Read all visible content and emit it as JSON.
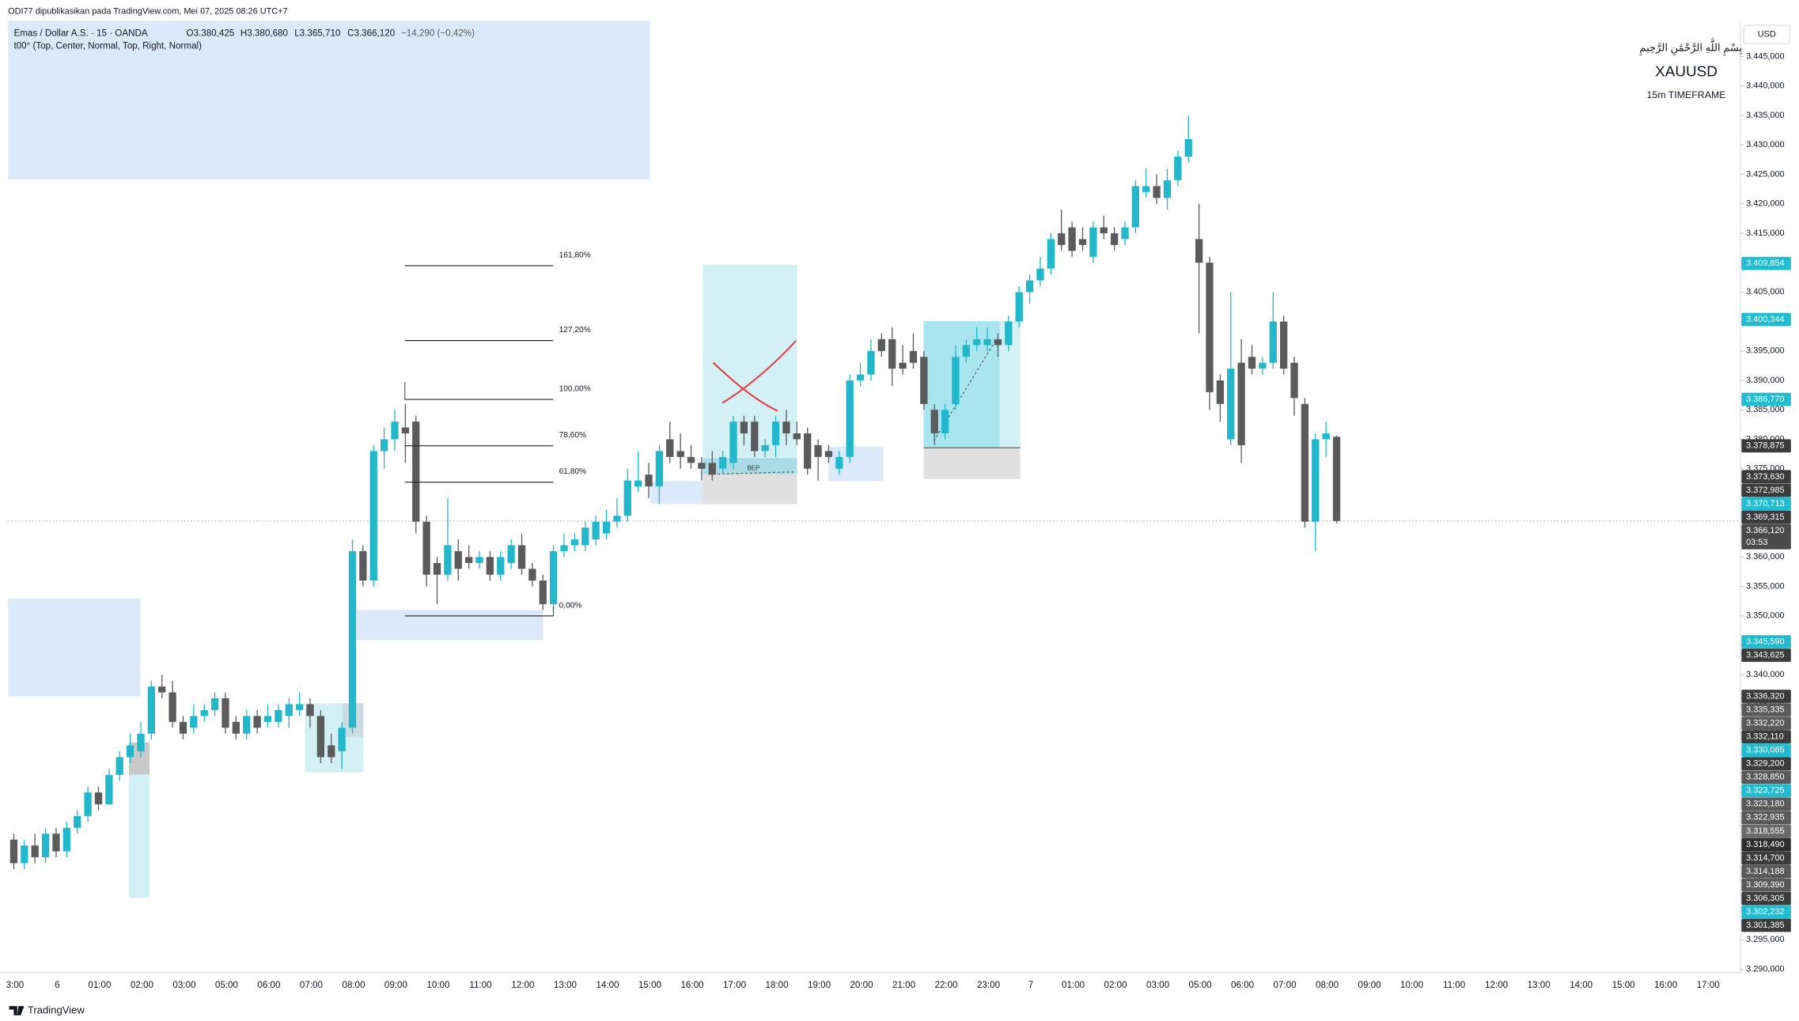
{
  "header": {
    "publisher": "ODI77 dipublikasikan pada TradingView.com, Mei 07, 2025 08:26 UTC+7"
  },
  "chart_data": {
    "type": "candlestick",
    "symbol_legend": "Emas / Dollar A.S. · 15 · OANDA",
    "ohlc_legend": [
      "O3.380,425",
      "H3.380,680",
      "L3.365,710",
      "C3.366,120",
      "−14,290 (−0,42%)"
    ],
    "indicator_legend": "t00° (Top, Center, Normal, Top, Right, Normal)",
    "currency": "USD",
    "annotations": {
      "basmala": "بِسْمِ اللَّهِ الرَّحْمَٰنِ الرَّحِيمِ",
      "symbol": "XAUUSD",
      "timeframe": "15m TIMEFRAME",
      "bep": "BEP"
    },
    "time_labels": [
      "3:00",
      "6",
      "01:00",
      "02:00",
      "03:00",
      "05:00",
      "06:00",
      "07:00",
      "08:00",
      "09:00",
      "10:00",
      "11:00",
      "12:00",
      "13:00",
      "14:00",
      "15:00",
      "16:00",
      "17:00",
      "18:00",
      "19:00",
      "20:00",
      "21:00",
      "22:00",
      "23:00",
      "7",
      "01:00",
      "02:00",
      "03:00",
      "05:00",
      "06:00",
      "07:00",
      "08:00",
      "09:00",
      "10:00",
      "11:00",
      "12:00",
      "13:00",
      "14:00",
      "15:00",
      "16:00",
      "17:00"
    ],
    "up_color": "#22b7cb",
    "down_color": "#5b5b5b",
    "ohlc": [
      [
        3312,
        3313,
        3307,
        3308
      ],
      [
        3308,
        3312,
        3307,
        3311
      ],
      [
        3311,
        3313,
        3308,
        3309
      ],
      [
        3309,
        3314,
        3308,
        3313
      ],
      [
        3313,
        3314,
        3309,
        3310
      ],
      [
        3310,
        3315,
        3309,
        3314
      ],
      [
        3314,
        3317,
        3313,
        3316
      ],
      [
        3316,
        3321,
        3315,
        3320
      ],
      [
        3320,
        3321,
        3317,
        3318
      ],
      [
        3318,
        3324,
        3318,
        3323
      ],
      [
        3323,
        3327,
        3322,
        3326
      ],
      [
        3326,
        3330,
        3325,
        3328
      ],
      [
        3327,
        3332,
        3326,
        3330
      ],
      [
        3330,
        3339,
        3329,
        3338
      ],
      [
        3338,
        3340,
        3336,
        3337
      ],
      [
        3337,
        3339,
        3331,
        3332
      ],
      [
        3332,
        3333,
        3329,
        3330
      ],
      [
        3331,
        3335,
        3330,
        3333
      ],
      [
        3333,
        3335,
        3332,
        3334
      ],
      [
        3334,
        3337,
        3333,
        3336
      ],
      [
        3336,
        3337,
        3330,
        3331
      ],
      [
        3332,
        3333,
        3329,
        3330
      ],
      [
        3330,
        3334,
        3329,
        3333
      ],
      [
        3333,
        3334,
        3330,
        3331
      ],
      [
        3332,
        3335,
        3331,
        3333
      ],
      [
        3332,
        3335,
        3331,
        3334
      ],
      [
        3333,
        3336,
        3331,
        3335
      ],
      [
        3334,
        3337,
        3333,
        3335
      ],
      [
        3335,
        3336,
        3331,
        3333
      ],
      [
        3333,
        3334,
        3325,
        3326
      ],
      [
        3328,
        3330,
        3325,
        3326
      ],
      [
        3327,
        3332,
        3324,
        3331
      ],
      [
        3331,
        3363,
        3330,
        3361
      ],
      [
        3361,
        3362,
        3355,
        3356
      ],
      [
        3356,
        3379,
        3355,
        3378
      ],
      [
        3378,
        3382,
        3375,
        3380
      ],
      [
        3380,
        3385,
        3378,
        3383
      ],
      [
        3382,
        3386,
        3376,
        3381
      ],
      [
        3383,
        3384,
        3364,
        3366
      ],
      [
        3366,
        3367,
        3355,
        3357
      ],
      [
        3359,
        3360,
        3352,
        3357
      ],
      [
        3357,
        3370,
        3356,
        3362
      ],
      [
        3361,
        3363,
        3356,
        3358
      ],
      [
        3360,
        3362,
        3358,
        3359
      ],
      [
        3359,
        3361,
        3358,
        3360
      ],
      [
        3360,
        3361,
        3356,
        3357
      ],
      [
        3357,
        3361,
        3356,
        3360
      ],
      [
        3359,
        3363,
        3358,
        3362
      ],
      [
        3362,
        3364,
        3357,
        3358
      ],
      [
        3358,
        3359,
        3355,
        3356
      ],
      [
        3356,
        3357,
        3351,
        3352
      ],
      [
        3352,
        3362,
        3351,
        3361
      ],
      [
        3361,
        3364,
        3360,
        3362
      ],
      [
        3362,
        3364,
        3361,
        3363
      ],
      [
        3362,
        3366,
        3361,
        3365
      ],
      [
        3363,
        3367,
        3362,
        3366
      ],
      [
        3364,
        3368,
        3363,
        3366
      ],
      [
        3366,
        3370,
        3365,
        3367
      ],
      [
        3367,
        3375,
        3366,
        3373
      ],
      [
        3372,
        3378,
        3371,
        3373
      ],
      [
        3374,
        3376,
        3370,
        3372
      ],
      [
        3372,
        3379,
        3369,
        3378
      ],
      [
        3380,
        3383,
        3376,
        3377
      ],
      [
        3378,
        3381,
        3375,
        3377
      ],
      [
        3377,
        3379,
        3375,
        3376
      ],
      [
        3376,
        3377,
        3373,
        3375
      ],
      [
        3376,
        3378,
        3373,
        3374
      ],
      [
        3375,
        3378,
        3374,
        3377
      ],
      [
        3376,
        3384,
        3375,
        3383
      ],
      [
        3383,
        3384,
        3379,
        3381
      ],
      [
        3383,
        3384,
        3377,
        3378
      ],
      [
        3378,
        3380,
        3377,
        3379
      ],
      [
        3379,
        3384,
        3377,
        3383
      ],
      [
        3383,
        3385,
        3379,
        3381
      ],
      [
        3381,
        3383,
        3379,
        3380
      ],
      [
        3381,
        3382,
        3374,
        3375
      ],
      [
        3379,
        3380,
        3373,
        3377
      ],
      [
        3378,
        3379,
        3376,
        3377
      ],
      [
        3375,
        3378,
        3374,
        3377
      ],
      [
        3377,
        3391,
        3376,
        3390
      ],
      [
        3390,
        3393,
        3389,
        3391
      ],
      [
        3391,
        3397,
        3390,
        3395
      ],
      [
        3397,
        3398,
        3394,
        3395
      ],
      [
        3397,
        3399,
        3389,
        3392
      ],
      [
        3393,
        3396,
        3391,
        3392
      ],
      [
        3395,
        3398,
        3392,
        3393
      ],
      [
        3394,
        3395,
        3385,
        3386
      ],
      [
        3385,
        3386,
        3379,
        3381
      ],
      [
        3381,
        3386,
        3380,
        3385
      ],
      [
        3386,
        3396,
        3385,
        3394
      ],
      [
        3394,
        3397,
        3393,
        3396
      ],
      [
        3396,
        3399,
        3395,
        3397
      ],
      [
        3396,
        3399,
        3395,
        3397
      ],
      [
        3397,
        3398,
        3394,
        3396
      ],
      [
        3396,
        3401,
        3395,
        3400
      ],
      [
        3400,
        3406,
        3399,
        3405
      ],
      [
        3405,
        3408,
        3403,
        3407
      ],
      [
        3407,
        3411,
        3406,
        3409
      ],
      [
        3409,
        3415,
        3408,
        3414
      ],
      [
        3415,
        3419,
        3412,
        3413
      ],
      [
        3416,
        3417,
        3411,
        3412
      ],
      [
        3414,
        3416,
        3412,
        3413
      ],
      [
        3411,
        3417,
        3410,
        3416
      ],
      [
        3416,
        3418,
        3414,
        3415
      ],
      [
        3415,
        3416,
        3412,
        3413
      ],
      [
        3414,
        3417,
        3413,
        3416
      ],
      [
        3416,
        3424,
        3415,
        3423
      ],
      [
        3422,
        3426,
        3421,
        3423
      ],
      [
        3423,
        3425,
        3420,
        3421
      ],
      [
        3421,
        3426,
        3419,
        3424
      ],
      [
        3424,
        3429,
        3423,
        3428
      ],
      [
        3428,
        3435,
        3427,
        3431
      ],
      [
        3414,
        3420,
        3398,
        3410
      ],
      [
        3410,
        3411,
        3385,
        3388
      ],
      [
        3390,
        3391,
        3383,
        3386
      ],
      [
        3380,
        3405,
        3379,
        3392
      ],
      [
        3393,
        3397,
        3376,
        3379
      ],
      [
        3394,
        3396,
        3391,
        3392
      ],
      [
        3392,
        3394,
        3391,
        3393
      ],
      [
        3393,
        3405,
        3392,
        3400
      ],
      [
        3400,
        3401,
        3391,
        3392
      ],
      [
        3393,
        3394,
        3384,
        3387
      ],
      [
        3386,
        3387,
        3365,
        3366
      ],
      [
        3366,
        3381,
        3361,
        3380
      ],
      [
        3380,
        3383,
        3377,
        3381
      ],
      [
        3380.425,
        3380.68,
        3365.71,
        3366.12
      ]
    ],
    "ylim": [
      3289.4,
      3451.1
    ],
    "yticks": [
      {
        "value": 3290,
        "label": "3.290,000"
      },
      {
        "value": 3295,
        "label": "3.295,000"
      },
      {
        "value": 3300,
        "label": "3.300,000"
      },
      {
        "value": 3305,
        "label": "3.305,000"
      },
      {
        "value": 3310,
        "label": "3.310,000"
      },
      {
        "value": 3315,
        "label": "3.315,000"
      },
      {
        "value": 3320,
        "label": "3.320,000"
      },
      {
        "value": 3325,
        "label": "3.325,000"
      },
      {
        "value": 3330,
        "label": "3.330,000"
      },
      {
        "value": 3335,
        "label": "3.335,000"
      },
      {
        "value": 3340,
        "label": "3.340,000"
      },
      {
        "value": 3345,
        "label": "3.345,000"
      },
      {
        "value": 3350,
        "label": "3.350,000"
      },
      {
        "value": 3355,
        "label": "3.355,000"
      },
      {
        "value": 3360,
        "label": "3.360,000"
      },
      {
        "value": 3365,
        "label": "3.365,000"
      },
      {
        "value": 3370,
        "label": "3.370,000"
      },
      {
        "value": 3375,
        "label": "3.375,000"
      },
      {
        "value": 3380,
        "label": "3.380,000"
      },
      {
        "value": 3385,
        "label": "3.385,000"
      },
      {
        "value": 3390,
        "label": "3.390,000"
      },
      {
        "value": 3395,
        "label": "3.395,000"
      },
      {
        "value": 3400,
        "label": "3.400,000"
      },
      {
        "value": 3405,
        "label": "3.405,000"
      },
      {
        "value": 3410,
        "label": "3.410,000"
      },
      {
        "value": 3415,
        "label": "3.415,000"
      },
      {
        "value": 3420,
        "label": "3.420,000"
      },
      {
        "value": 3425,
        "label": "3.425,000"
      },
      {
        "value": 3430,
        "label": "3.430,000"
      },
      {
        "value": 3435,
        "label": "3.435,000"
      },
      {
        "value": 3440,
        "label": "3.440,000"
      },
      {
        "value": 3445,
        "label": "3.445,000"
      }
    ],
    "fib_levels": [
      {
        "label": "161,80%",
        "value": 3409.49
      },
      {
        "label": "127,20%",
        "value": 3396.77
      },
      {
        "label": "100,00%",
        "value": 3386.77
      },
      {
        "label": "78,60%",
        "value": 3378.9
      },
      {
        "label": "61,80%",
        "value": 3372.72
      },
      {
        "label": "0,00%",
        "value": 3350
      }
    ],
    "price_tags": [
      {
        "value": 3409.854,
        "label": "3.409,854",
        "color": "#22bcd1"
      },
      {
        "value": 3400.344,
        "label": "3.400,344",
        "color": "#22bcd1"
      },
      {
        "value": 3386.77,
        "label": "3.386,770",
        "color": "#22bcd1"
      },
      {
        "value": 3378.875,
        "label": "3.378,875",
        "color": "#3c3c3c"
      },
      {
        "value": 3373.63,
        "label": "3.373,630",
        "color": "#3c3c3c"
      },
      {
        "value": 3372.985,
        "label": "3.372,985",
        "color": "#3c3c3c"
      },
      {
        "value": 3370.713,
        "label": "3.370,713",
        "color": "#22bcd1"
      },
      {
        "value": 3369.315,
        "label": "3.369,315",
        "color": "#3c3c3c"
      },
      {
        "value": 3366.12,
        "label": "3.366,120",
        "color": "#4a4a4a"
      },
      {
        "value": 3345.59,
        "label": "3.345,590",
        "color": "#22bcd1"
      },
      {
        "value": 3343.625,
        "label": "3.343,625",
        "color": "#3c3c3c"
      },
      {
        "value": 3336.32,
        "label": "3.336,320",
        "color": "#3c3c3c"
      },
      {
        "value": 3335.335,
        "label": "3.335,335",
        "color": "#5a5a5a"
      },
      {
        "value": 3332.22,
        "label": "3.332,220",
        "color": "#5a5a5a"
      },
      {
        "value": 3332.11,
        "label": "3.332,110",
        "color": "#3c3c3c"
      },
      {
        "value": 3330.065,
        "label": "3.330,065",
        "color": "#22bcd1"
      },
      {
        "value": 3329.2,
        "label": "3.329,200",
        "color": "#3c3c3c"
      },
      {
        "value": 3328.85,
        "label": "3.328,850",
        "color": "#5a5a5a"
      },
      {
        "value": 3323.725,
        "label": "3.323,725",
        "color": "#22bcd1"
      },
      {
        "value": 3323.18,
        "label": "3.323,180",
        "color": "#5a5a5a"
      },
      {
        "value": 3322.935,
        "label": "3.322,935",
        "color": "#5a5a5a"
      },
      {
        "value": 3318.555,
        "label": "3.318,555",
        "color": "#6a6a6a"
      },
      {
        "value": 3318.49,
        "label": "3.318,490",
        "color": "#2e2e2e"
      },
      {
        "value": 3314.7,
        "label": "3.314,700",
        "color": "#3c3c3c"
      },
      {
        "value": 3314.188,
        "label": "3.314,188",
        "color": "#5a5a5a"
      },
      {
        "value": 3309.39,
        "label": "3.309,390",
        "color": "#5a5a5a"
      },
      {
        "value": 3306.305,
        "label": "3.306,305",
        "color": "#3c3c3c"
      },
      {
        "value": 3302.232,
        "label": "3.302,232",
        "color": "#22bcd1"
      },
      {
        "value": 3301.385,
        "label": "3.301,385",
        "color": "#3c3c3c"
      }
    ],
    "countdown": "03:53"
  },
  "footer": {
    "brand": "TradingView"
  }
}
